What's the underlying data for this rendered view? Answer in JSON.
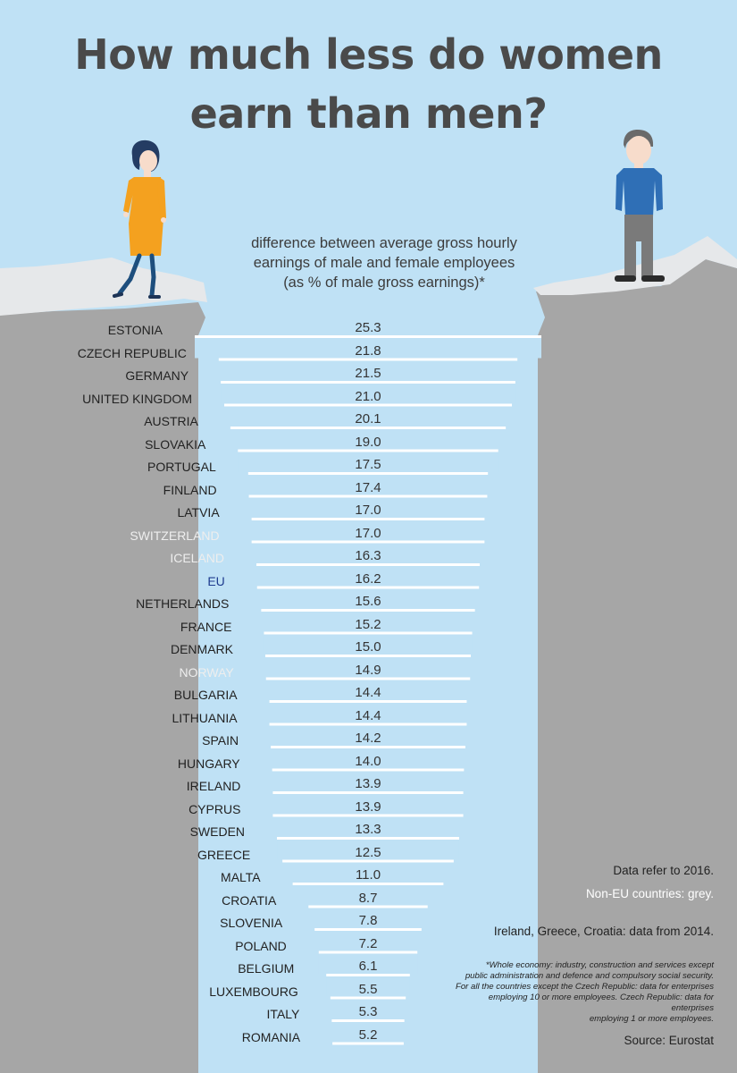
{
  "title_line1": "How much less do women",
  "title_line2": "earn than men?",
  "subtitle_line1": "difference between average gross hourly",
  "subtitle_line2": "earnings of male and female employees",
  "subtitle_line3": "(as % of male gross earnings)*",
  "colors": {
    "sky": "#bfe1f5",
    "ground": "#a6a6a6",
    "snow": "#e6e8ea",
    "bar": "#bfe1f5",
    "bar_line": "#ffffff",
    "eu_country_text": "#222222",
    "non_eu_country_text": "#eeeeee",
    "eu_average_text": "#1f3c8f",
    "woman_dress": "#f4a11f",
    "woman_legs": "#1d4e7d",
    "woman_hair": "#243c63",
    "man_shirt": "#2f6fb6",
    "man_trousers": "#7a7a7a",
    "skin": "#f7dccb"
  },
  "chart_data": {
    "type": "bar",
    "orientation": "horizontal",
    "bar_alignment": "centered",
    "title": "How much less do women earn than men?",
    "subtitle": "difference between average gross hourly earnings of male and female employees (as % of male gross earnings)*",
    "xlim": [
      0,
      25.3
    ],
    "grid": false,
    "legend": "none",
    "categories": [
      "ESTONIA",
      "CZECH REPUBLIC",
      "GERMANY",
      "UNITED KINGDOM",
      "AUSTRIA",
      "SLOVAKIA",
      "PORTUGAL",
      "FINLAND",
      "LATVIA",
      "SWITZERLAND",
      "ICELAND",
      "EU",
      "NETHERLANDS",
      "FRANCE",
      "DENMARK",
      "NORWAY",
      "BULGARIA",
      "LITHUANIA",
      "SPAIN",
      "HUNGARY",
      "IRELAND",
      "CYPRUS",
      "SWEDEN",
      "GREECE",
      "MALTA",
      "CROATIA",
      "SLOVENIA",
      "POLAND",
      "BELGIUM",
      "LUXEMBOURG",
      "ITALY",
      "ROMANIA"
    ],
    "values": [
      25.3,
      21.8,
      21.5,
      21.0,
      20.1,
      19.0,
      17.5,
      17.4,
      17.0,
      17.0,
      16.3,
      16.2,
      15.6,
      15.2,
      15.0,
      14.9,
      14.4,
      14.4,
      14.2,
      14.0,
      13.9,
      13.9,
      13.3,
      12.5,
      11.0,
      8.7,
      7.8,
      7.2,
      6.1,
      5.5,
      5.3,
      5.2
    ],
    "value_labels": [
      "25.3",
      "21.8",
      "21.5",
      "21.0",
      "20.1",
      "19.0",
      "17.5",
      "17.4",
      "17.0",
      "17.0",
      "16.3",
      "16.2",
      "15.6",
      "15.2",
      "15.0",
      "14.9",
      "14.4",
      "14.4",
      "14.2",
      "14.0",
      "13.9",
      "13.9",
      "13.3",
      "12.5",
      "11.0",
      "8.7",
      "7.8",
      "7.2",
      "6.1",
      "5.5",
      "5.3",
      "5.2"
    ],
    "group": [
      "eu",
      "eu",
      "eu",
      "eu",
      "eu",
      "eu",
      "eu",
      "eu",
      "eu",
      "non-eu",
      "non-eu",
      "eu-average",
      "eu",
      "eu",
      "eu",
      "non-eu",
      "eu",
      "eu",
      "eu",
      "eu",
      "eu",
      "eu",
      "eu",
      "eu",
      "eu",
      "eu",
      "eu",
      "eu",
      "eu",
      "eu",
      "eu",
      "eu"
    ]
  },
  "notes": {
    "year": "Data refer to 2016.",
    "non_eu": "Non-EU countries: grey.",
    "data_2014": "Ireland, Greece, Croatia: data from 2014.",
    "footnote_lines": [
      "*Whole economy: industry, construction and services except",
      "public administration and defence and compulsory social security.",
      "For all the countries except the Czech Republic: data for enterprises",
      "employing 10 or more employees. Czech Republic: data for enterprises",
      "employing 1 or more employees."
    ],
    "source": "Source: Eurostat"
  }
}
